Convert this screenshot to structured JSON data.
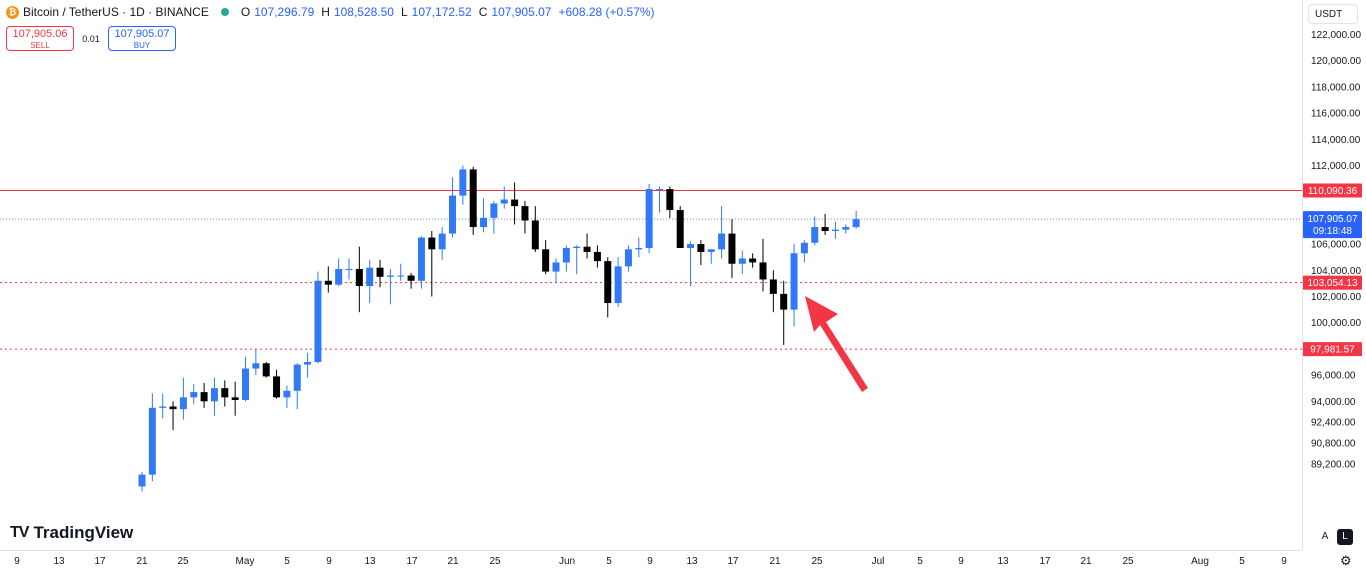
{
  "legend": {
    "symbol": "Bitcoin / TetherUS · 1D · BINANCE",
    "o_label": "O",
    "o": "107,296.79",
    "h_label": "H",
    "h": "108,528.50",
    "l_label": "L",
    "l": "107,172.52",
    "c_label": "C",
    "c": "107,905.07",
    "change": "+608.28 (+0.57%)"
  },
  "trade": {
    "sell_price": "107,905.06",
    "sell_label": "SELL",
    "spread": "0.01",
    "buy_price": "107,905.07",
    "buy_label": "BUY"
  },
  "currency": "USDT",
  "logo": "TradingView",
  "scale_buttons": {
    "auto": "A",
    "log": "L"
  },
  "colors": {
    "up": "#3179f5",
    "down": "#000000",
    "resistance": "#f23645",
    "current": "#2962ff"
  },
  "chart_data": {
    "type": "candlestick",
    "y_ticks": [
      "122,000.00",
      "120,000.00",
      "118,000.00",
      "116,000.00",
      "114,000.00",
      "112,000.00",
      "106,000.00",
      "104,000.00",
      "102,000.00",
      "100,000.00",
      "96,000.00",
      "94,000.00",
      "92,400.00",
      "90,800.00",
      "89,200.00"
    ],
    "x_ticks": [
      "9",
      "13",
      "17",
      "21",
      "25",
      "May",
      "5",
      "9",
      "13",
      "17",
      "21",
      "25",
      "Jun",
      "5",
      "9",
      "13",
      "17",
      "21",
      "25",
      "Jul",
      "5",
      "9",
      "13",
      "17",
      "21",
      "25",
      "Aug",
      "5",
      "9"
    ],
    "hlines": [
      {
        "value": 110090.36,
        "label": "110,090.36",
        "style": "solid"
      },
      {
        "value": 103054.13,
        "label": "103,054.13",
        "style": "dotted"
      },
      {
        "value": 97981.57,
        "label": "97,981.57",
        "style": "dotted"
      }
    ],
    "current": {
      "value": 107905.07,
      "label": "107,905.07",
      "countdown": "09:18:48"
    },
    "annotation": "arrow",
    "candles": [
      {
        "d": "Apr 21",
        "o": 87500,
        "h": 88600,
        "l": 87100,
        "c": 88400
      },
      {
        "d": "Apr 22",
        "o": 88400,
        "h": 94600,
        "l": 87900,
        "c": 93500
      },
      {
        "d": "Apr 23",
        "o": 93500,
        "h": 94600,
        "l": 92700,
        "c": 93600
      },
      {
        "d": "Apr 24",
        "o": 93600,
        "h": 94000,
        "l": 91800,
        "c": 93400
      },
      {
        "d": "Apr 25",
        "o": 93400,
        "h": 95800,
        "l": 92600,
        "c": 94300
      },
      {
        "d": "Apr 26",
        "o": 94300,
        "h": 95300,
        "l": 93800,
        "c": 94700
      },
      {
        "d": "Apr 27",
        "o": 94700,
        "h": 95400,
        "l": 93500,
        "c": 94000
      },
      {
        "d": "Apr 28",
        "o": 94000,
        "h": 95800,
        "l": 92900,
        "c": 95000
      },
      {
        "d": "Apr 29",
        "o": 95000,
        "h": 95600,
        "l": 93600,
        "c": 94300
      },
      {
        "d": "Apr 30",
        "o": 94300,
        "h": 95500,
        "l": 92900,
        "c": 94100
      },
      {
        "d": "May 1",
        "o": 94100,
        "h": 97400,
        "l": 94000,
        "c": 96500
      },
      {
        "d": "May 2",
        "o": 96500,
        "h": 98000,
        "l": 96000,
        "c": 96900
      },
      {
        "d": "May 3",
        "o": 96900,
        "h": 97000,
        "l": 95800,
        "c": 95900
      },
      {
        "d": "May 4",
        "o": 95900,
        "h": 96400,
        "l": 94200,
        "c": 94300
      },
      {
        "d": "May 5",
        "o": 94300,
        "h": 95200,
        "l": 93500,
        "c": 94800
      },
      {
        "d": "May 6",
        "o": 94800,
        "h": 96900,
        "l": 93400,
        "c": 96800
      },
      {
        "d": "May 7",
        "o": 96800,
        "h": 97700,
        "l": 95800,
        "c": 97000
      },
      {
        "d": "May 8",
        "o": 97000,
        "h": 103900,
        "l": 96900,
        "c": 103200
      },
      {
        "d": "May 9",
        "o": 103200,
        "h": 104300,
        "l": 102300,
        "c": 102900
      },
      {
        "d": "May 10",
        "o": 102900,
        "h": 104900,
        "l": 102800,
        "c": 104100
      },
      {
        "d": "May 11",
        "o": 104100,
        "h": 104900,
        "l": 103300,
        "c": 104100
      },
      {
        "d": "May 12",
        "o": 104100,
        "h": 105800,
        "l": 100800,
        "c": 102800
      },
      {
        "d": "May 13",
        "o": 102800,
        "h": 104800,
        "l": 101500,
        "c": 104200
      },
      {
        "d": "May 14",
        "o": 104200,
        "h": 104800,
        "l": 102700,
        "c": 103500
      },
      {
        "d": "May 15",
        "o": 103500,
        "h": 104100,
        "l": 101400,
        "c": 103600
      },
      {
        "d": "May 16",
        "o": 103600,
        "h": 104500,
        "l": 103200,
        "c": 103600
      },
      {
        "d": "May 17",
        "o": 103600,
        "h": 103800,
        "l": 102600,
        "c": 103200
      },
      {
        "d": "May 18",
        "o": 103200,
        "h": 106600,
        "l": 102600,
        "c": 106500
      },
      {
        "d": "May 19",
        "o": 106500,
        "h": 107000,
        "l": 102000,
        "c": 105600
      },
      {
        "d": "May 20",
        "o": 105600,
        "h": 107300,
        "l": 104800,
        "c": 106800
      },
      {
        "d": "May 21",
        "o": 106800,
        "h": 111100,
        "l": 106500,
        "c": 109700
      },
      {
        "d": "May 22",
        "o": 109700,
        "h": 112000,
        "l": 109000,
        "c": 111700
      },
      {
        "d": "May 23",
        "o": 111700,
        "h": 111900,
        "l": 106700,
        "c": 107300
      },
      {
        "d": "May 24",
        "o": 107300,
        "h": 109500,
        "l": 106900,
        "c": 108000
      },
      {
        "d": "May 25",
        "o": 108000,
        "h": 109300,
        "l": 106800,
        "c": 109100
      },
      {
        "d": "May 26",
        "o": 109100,
        "h": 110400,
        "l": 108700,
        "c": 109400
      },
      {
        "d": "May 27",
        "o": 109400,
        "h": 110700,
        "l": 107500,
        "c": 108900
      },
      {
        "d": "May 28",
        "o": 108900,
        "h": 109300,
        "l": 106800,
        "c": 107800
      },
      {
        "d": "May 29",
        "o": 107800,
        "h": 108900,
        "l": 105400,
        "c": 105600
      },
      {
        "d": "May 30",
        "o": 105600,
        "h": 106300,
        "l": 103700,
        "c": 103900
      },
      {
        "d": "May 31",
        "o": 103900,
        "h": 104900,
        "l": 103100,
        "c": 104600
      },
      {
        "d": "Jun 1",
        "o": 104600,
        "h": 105900,
        "l": 103900,
        "c": 105700
      },
      {
        "d": "Jun 2",
        "o": 105700,
        "h": 105900,
        "l": 103700,
        "c": 105800
      },
      {
        "d": "Jun 3",
        "o": 105800,
        "h": 106800,
        "l": 104900,
        "c": 105400
      },
      {
        "d": "Jun 4",
        "o": 105400,
        "h": 105900,
        "l": 104200,
        "c": 104700
      },
      {
        "d": "Jun 5",
        "o": 104700,
        "h": 105000,
        "l": 100400,
        "c": 101500
      },
      {
        "d": "Jun 6",
        "o": 101500,
        "h": 105000,
        "l": 101200,
        "c": 104300
      },
      {
        "d": "Jun 7",
        "o": 104300,
        "h": 105900,
        "l": 103900,
        "c": 105600
      },
      {
        "d": "Jun 8",
        "o": 105600,
        "h": 106500,
        "l": 105000,
        "c": 105700
      },
      {
        "d": "Jun 9",
        "o": 105700,
        "h": 110600,
        "l": 105300,
        "c": 110200
      },
      {
        "d": "Jun 10",
        "o": 110200,
        "h": 110400,
        "l": 108400,
        "c": 110200
      },
      {
        "d": "Jun 11",
        "o": 110200,
        "h": 110400,
        "l": 108000,
        "c": 108600
      },
      {
        "d": "Jun 12",
        "o": 108600,
        "h": 108900,
        "l": 105700,
        "c": 105700
      },
      {
        "d": "Jun 13",
        "o": 105700,
        "h": 106200,
        "l": 102800,
        "c": 106000
      },
      {
        "d": "Jun 14",
        "o": 106000,
        "h": 106300,
        "l": 104400,
        "c": 105400
      },
      {
        "d": "Jun 15",
        "o": 105400,
        "h": 105600,
        "l": 104500,
        "c": 105600
      },
      {
        "d": "Jun 16",
        "o": 105600,
        "h": 108900,
        "l": 104900,
        "c": 106800
      },
      {
        "d": "Jun 17",
        "o": 106800,
        "h": 107900,
        "l": 103400,
        "c": 104500
      },
      {
        "d": "Jun 18",
        "o": 104500,
        "h": 105500,
        "l": 103700,
        "c": 104900
      },
      {
        "d": "Jun 19",
        "o": 104900,
        "h": 105300,
        "l": 104200,
        "c": 104600
      },
      {
        "d": "Jun 20",
        "o": 104600,
        "h": 106400,
        "l": 102400,
        "c": 103300
      },
      {
        "d": "Jun 21",
        "o": 103300,
        "h": 104000,
        "l": 100800,
        "c": 102200
      },
      {
        "d": "Jun 22",
        "o": 102200,
        "h": 103200,
        "l": 98300,
        "c": 101000
      },
      {
        "d": "Jun 23",
        "o": 101000,
        "h": 106000,
        "l": 99700,
        "c": 105300
      },
      {
        "d": "Jun 24",
        "o": 105300,
        "h": 106300,
        "l": 104600,
        "c": 106100
      },
      {
        "d": "Jun 25",
        "o": 106100,
        "h": 108100,
        "l": 105900,
        "c": 107300
      },
      {
        "d": "Jun 26",
        "o": 107300,
        "h": 108300,
        "l": 106700,
        "c": 107000
      },
      {
        "d": "Jun 27",
        "o": 107000,
        "h": 107700,
        "l": 106400,
        "c": 107100
      },
      {
        "d": "Jun 28",
        "o": 107100,
        "h": 107500,
        "l": 106800,
        "c": 107300
      },
      {
        "d": "Jun 29",
        "o": 107296.79,
        "h": 108528.5,
        "l": 107172.52,
        "c": 107905.07
      }
    ]
  }
}
